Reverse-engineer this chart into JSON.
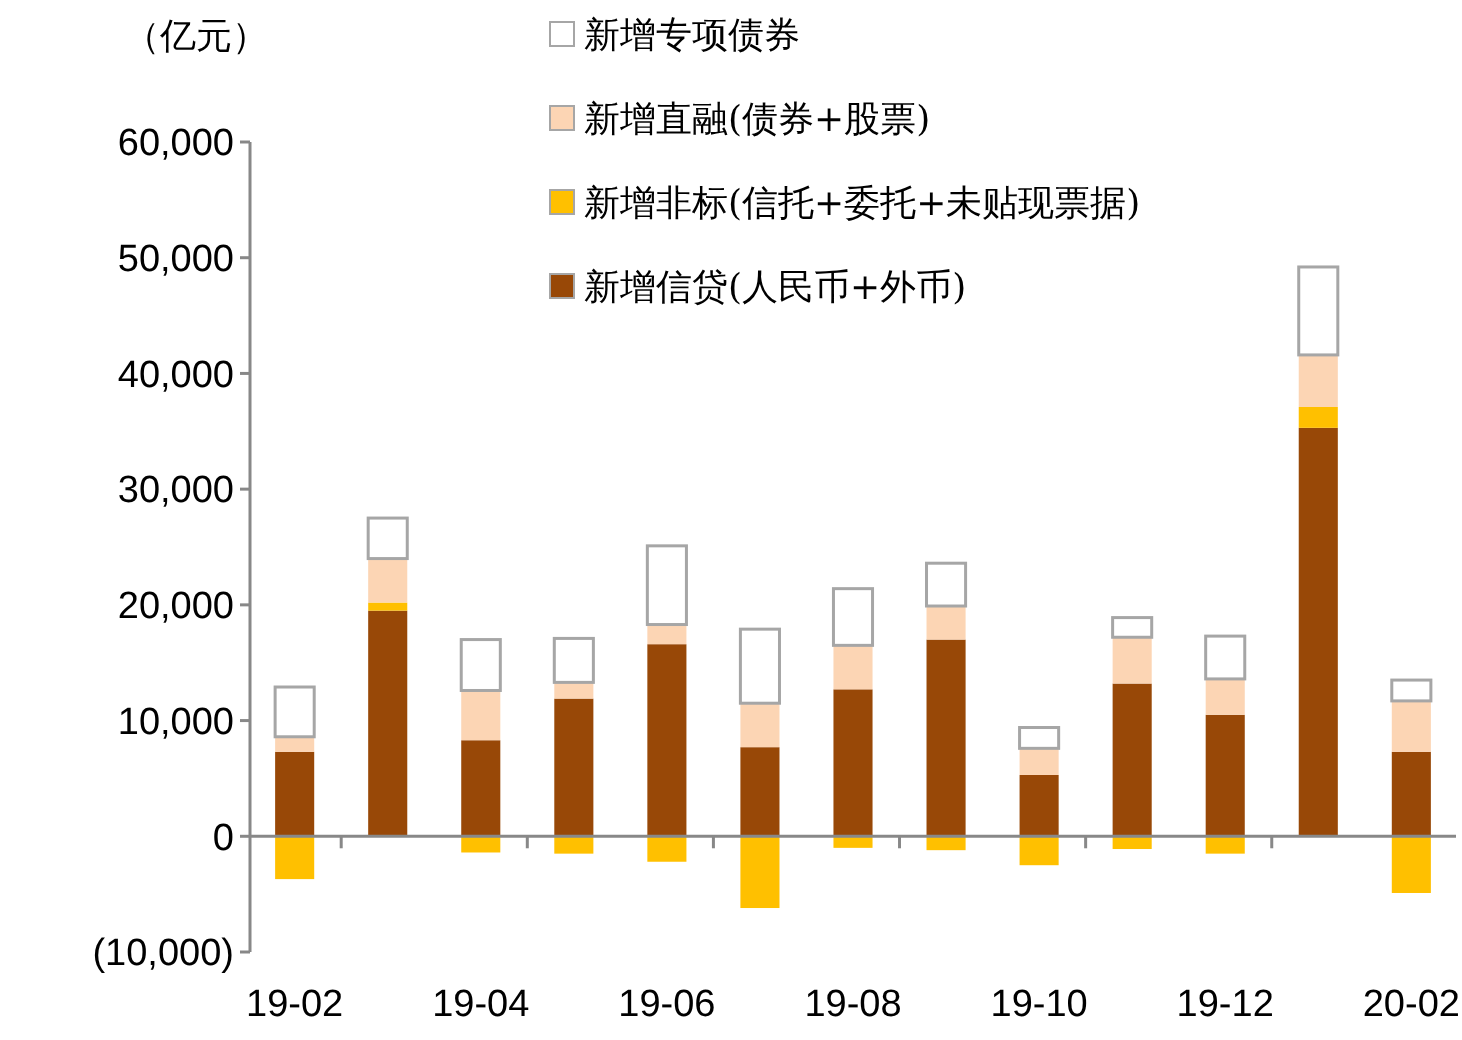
{
  "chart_data": {
    "type": "bar",
    "stacked": true,
    "ylabel": "（亿元）",
    "categories": [
      "19-02",
      null,
      "19-04",
      null,
      "19-06",
      null,
      "19-08",
      null,
      "19-10",
      null,
      "19-12",
      null,
      "20-02"
    ],
    "series": [
      {
        "name": "新增信贷(人民币+外币)",
        "color": "#984807",
        "values": [
          7300,
          19500,
          8300,
          11900,
          16600,
          7700,
          12700,
          17000,
          5300,
          13200,
          10500,
          35300,
          7300
        ]
      },
      {
        "name": "新增非标(信托+委托+未贴现票据)",
        "color": "#ffc000",
        "values": [
          -3700,
          700,
          -1400,
          -1500,
          -2200,
          -6200,
          -1000,
          -1200,
          -2500,
          -1100,
          -1500,
          1800,
          -4900
        ]
      },
      {
        "name": "新增直融(债券+股票)",
        "color": "#fcd5b4",
        "values": [
          1300,
          3800,
          4300,
          1400,
          1700,
          3800,
          3800,
          2900,
          2300,
          4000,
          3100,
          4500,
          4400
        ]
      },
      {
        "name": "新增专项债券",
        "color": "#ffffff",
        "values": [
          4300,
          3500,
          4400,
          3800,
          6800,
          6400,
          4900,
          3700,
          1800,
          1700,
          3700,
          7600,
          1800
        ]
      }
    ],
    "ylim": [
      -10000,
      60000
    ],
    "yticks": [
      {
        "value": -10000,
        "label": "(10,000)"
      },
      {
        "value": 0,
        "label": "0"
      },
      {
        "value": 10000,
        "label": "10,000"
      },
      {
        "value": 20000,
        "label": "20,000"
      },
      {
        "value": 30000,
        "label": "30,000"
      },
      {
        "value": 40000,
        "label": "40,000"
      },
      {
        "value": 50000,
        "label": "50,000"
      },
      {
        "value": 60000,
        "label": "60,000"
      }
    ],
    "legend": "top"
  }
}
